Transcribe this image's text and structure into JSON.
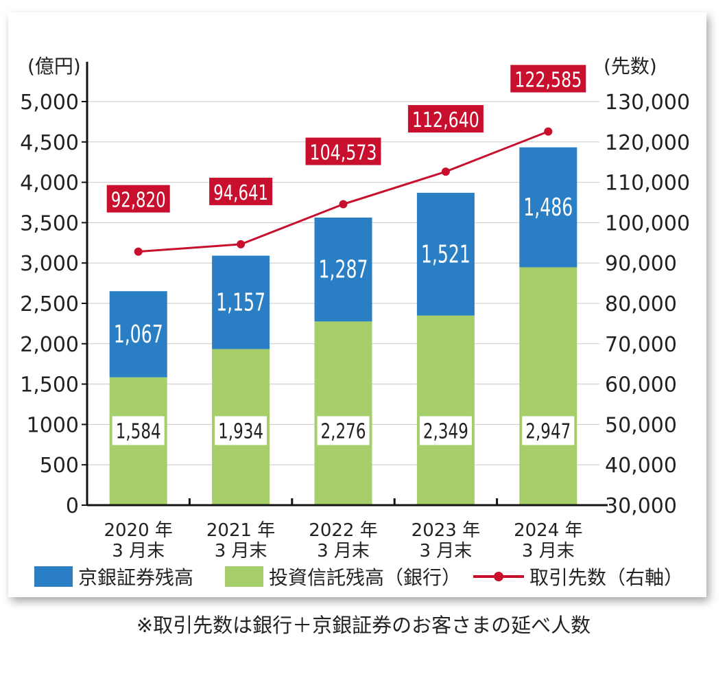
{
  "chart_data": {
    "type": "bar",
    "categories": [
      "2020 年\n3 月末",
      "2021 年\n3 月末",
      "2022 年\n3 月末",
      "2023 年\n3 月末",
      "2024 年\n3 月末"
    ],
    "series": [
      {
        "name": "投資信託残高（銀行）",
        "values": [
          1584,
          1934,
          2276,
          2349,
          2947
        ],
        "labels": [
          "1,584",
          "1,934",
          "2,276",
          "2,349",
          "2,947"
        ],
        "color": "#a6cf6c",
        "stack": "left"
      },
      {
        "name": "京銀証券残高",
        "values": [
          1067,
          1157,
          1287,
          1521,
          1486
        ],
        "labels": [
          "1,067",
          "1,157",
          "1,287",
          "1,521",
          "1,486"
        ],
        "color": "#2a7fc4",
        "stack": "left"
      },
      {
        "name": "取引先数（右軸）",
        "type": "line",
        "axis": "right",
        "values": [
          92820,
          94641,
          104573,
          112640,
          122585
        ],
        "labels": [
          "92,820",
          "94,641",
          "104,573",
          "112,640",
          "122,585"
        ],
        "color": "#c8102e"
      }
    ],
    "ylabel_left": "(億円)",
    "ylabel_right": "(先数)",
    "ylim_left": [
      0,
      5000
    ],
    "ylim_right": [
      30000,
      130000
    ],
    "yticks_left": [
      "0",
      "500",
      "1000",
      "1,500",
      "2,000",
      "2,500",
      "3,000",
      "3,500",
      "4,000",
      "4,500",
      "5,000"
    ],
    "yticks_right": [
      "30,000",
      "40,000",
      "50,000",
      "60,000",
      "70,000",
      "80,000",
      "90,000",
      "100,000",
      "110,000",
      "120,000",
      "130,000"
    ],
    "grid": true,
    "legend_position": "bottom"
  },
  "legend": {
    "item1": "京銀証券残高",
    "item2": "投資信託残高（銀行）",
    "item3": "取引先数（右軸）"
  },
  "footnote": "※取引先数は銀行＋京銀証券のお客さまの延べ人数"
}
